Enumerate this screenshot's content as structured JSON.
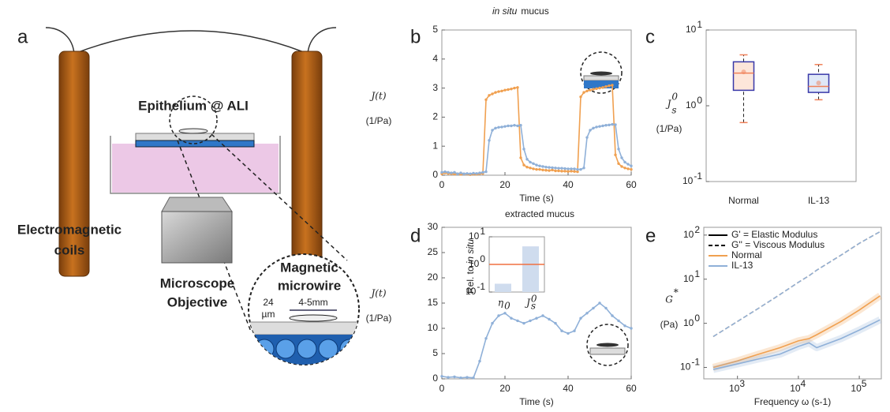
{
  "panel_labels": [
    "a",
    "b",
    "c",
    "d",
    "e"
  ],
  "diagram": {
    "epithelium": "Epithelium @ ALI",
    "coils": [
      "Electromagnetic",
      "coils"
    ],
    "objective": [
      "Microscope",
      "Objective"
    ],
    "microwire": [
      "Magnetic",
      "microwire"
    ],
    "thickness": [
      "24",
      "µm"
    ],
    "length": "4-5mm"
  },
  "section_titles": [
    {
      "italic": "in situ",
      "text": "mucus"
    },
    {
      "text": "extracted mucus"
    }
  ],
  "chart_data": [
    {
      "type": "line",
      "ylabel": {
        "main": "J(t)",
        "unit": "(1/Pa)"
      },
      "xlabel": "Time (s)",
      "x": [
        0,
        1,
        2,
        3,
        4,
        5,
        6,
        7,
        8,
        9,
        10,
        11,
        12,
        13,
        14,
        15,
        16,
        17,
        18,
        19,
        20,
        21,
        22,
        23,
        24,
        25,
        26,
        27,
        28,
        29,
        30,
        31,
        32,
        33,
        34,
        35,
        36,
        37,
        38,
        39,
        40,
        41,
        42,
        43,
        44,
        45,
        46,
        47,
        48,
        49,
        50,
        51,
        52,
        53,
        54,
        55,
        56,
        57,
        58,
        59,
        60
      ],
      "series": [
        {
          "color": "#f0a050",
          "values": [
            0.05,
            0.08,
            0.06,
            0.05,
            0.04,
            0.05,
            0.03,
            0.05,
            0.04,
            0.02,
            0.04,
            0.03,
            0.05,
            0.06,
            2.6,
            2.75,
            2.8,
            2.85,
            2.88,
            2.9,
            2.93,
            2.95,
            2.97,
            3.0,
            3.02,
            0.6,
            0.35,
            0.28,
            0.25,
            0.22,
            0.2,
            0.2,
            0.18,
            0.17,
            0.16,
            0.18,
            0.15,
            0.15,
            0.14,
            0.14,
            0.13,
            0.14,
            0.13,
            0.12,
            2.7,
            2.85,
            2.9,
            2.93,
            2.96,
            2.98,
            3.0,
            3.02,
            3.05,
            3.08,
            3.1,
            0.7,
            0.4,
            0.3,
            0.25,
            0.22,
            0.2
          ]
        },
        {
          "color": "#8fb0d8",
          "values": [
            0.1,
            0.12,
            0.1,
            0.08,
            0.1,
            0.05,
            0.08,
            0.05,
            0.06,
            0.05,
            0.07,
            0.06,
            0.08,
            0.1,
            0.12,
            1.2,
            1.55,
            1.62,
            1.65,
            1.66,
            1.68,
            1.7,
            1.7,
            1.72,
            1.7,
            1.72,
            0.9,
            0.55,
            0.45,
            0.4,
            0.35,
            0.32,
            0.3,
            0.28,
            0.27,
            0.26,
            0.25,
            0.24,
            0.24,
            0.23,
            0.22,
            0.22,
            0.22,
            0.2,
            0.2,
            0.25,
            1.3,
            1.55,
            1.62,
            1.66,
            1.68,
            1.7,
            1.72,
            1.73,
            1.75,
            1.74,
            0.9,
            0.6,
            0.45,
            0.38,
            0.32
          ]
        }
      ],
      "xlim": [
        0,
        60
      ],
      "xticks": [
        0,
        20,
        40,
        60
      ],
      "ylim": [
        0,
        5
      ],
      "yticks": [
        0,
        1,
        2,
        3,
        4,
        5
      ],
      "markers": true
    },
    {
      "type": "box",
      "ylabel": {
        "main": "J",
        "sub": "s",
        "sup": "0",
        "unit": "(1/Pa)"
      },
      "categories": [
        "Normal",
        "IL-13"
      ],
      "boxes": [
        {
          "min": 0.6,
          "q1": 1.6,
          "median": 2.7,
          "q3": 3.8,
          "max": 4.7,
          "mean": 2.8
        },
        {
          "min": 1.2,
          "q1": 1.5,
          "median": 1.8,
          "q3": 2.6,
          "max": 3.5,
          "mean": 2.0
        }
      ],
      "fills": [
        "#fde6da",
        "#dfe8f7"
      ],
      "box_color": "#3838a8",
      "median_color": "#f08058",
      "ylog": true,
      "ylim": [
        0.1,
        10
      ],
      "yticks": [
        {
          "value": 0.1,
          "label": "10",
          "exp": "-1"
        },
        {
          "value": 1,
          "label": "10",
          "exp": "0"
        },
        {
          "value": 10,
          "label": "10",
          "exp": "1"
        }
      ]
    },
    {
      "type": "line",
      "ylabel": {
        "main": "J(t)",
        "unit": "(1/Pa)"
      },
      "xlabel": "Time (s)",
      "x": [
        0,
        2,
        4,
        6,
        8,
        10,
        12,
        14,
        16,
        18,
        20,
        22,
        24,
        26,
        28,
        30,
        32,
        34,
        36,
        38,
        40,
        42,
        44,
        46,
        48,
        50,
        52,
        54,
        56,
        58,
        60
      ],
      "series": [
        {
          "color": "#8fb0d8",
          "values": [
            0.5,
            0.3,
            0.4,
            0.2,
            0.3,
            0.2,
            3.5,
            8,
            11,
            12.5,
            13,
            12,
            11.5,
            11,
            11.5,
            12,
            12.5,
            11.8,
            11,
            9.5,
            9,
            9.5,
            12,
            13,
            14,
            15,
            14,
            12.5,
            11.5,
            10.5,
            10
          ]
        }
      ],
      "xlim": [
        0,
        60
      ],
      "xticks": [
        0,
        20,
        40,
        60
      ],
      "ylim": [
        0,
        30
      ],
      "yticks": [
        0,
        5,
        10,
        15,
        20,
        25,
        30
      ],
      "markers": true
    },
    {
      "type": "bar",
      "ylabel": {
        "text": "Rel. to",
        "italic": "in situ"
      },
      "categories": [
        {
          "main": "η",
          "sub": "0"
        },
        {
          "main": "J",
          "sub": "s",
          "sup": "0"
        }
      ],
      "values": [
        0.2,
        4.5
      ],
      "color": "#cfdcee",
      "reference": 1,
      "reference_color": "#f07040",
      "ylog": true,
      "ylim": [
        0.1,
        10
      ],
      "yticks": [
        {
          "value": 0.1,
          "label": "10",
          "exp": "-1"
        },
        {
          "value": 1,
          "label": "10",
          "exp": "0"
        },
        {
          "value": 10,
          "label": "10",
          "exp": "1"
        }
      ]
    },
    {
      "type": "line",
      "ylabel": {
        "main": "G",
        "sup": "*",
        "unit": "(Pa)"
      },
      "xlabel": "Frequency ω (s-1)",
      "x": [
        400,
        1000,
        2000,
        5000,
        10000,
        15000,
        20000,
        50000,
        100000,
        220000
      ],
      "series": [
        {
          "color": "#f0a050",
          "dash": false,
          "values": [
            0.1,
            0.14,
            0.19,
            0.28,
            0.4,
            0.45,
            0.55,
            1.1,
            2.0,
            4.2
          ]
        },
        {
          "color": "#8fb0d8",
          "dash": false,
          "values": [
            0.09,
            0.12,
            0.15,
            0.2,
            0.3,
            0.36,
            0.28,
            0.45,
            0.7,
            1.2
          ]
        },
        {
          "color": "#f0a050",
          "dash": true,
          "values": [
            0.5,
            1.1,
            2.0,
            4.5,
            8.5,
            12,
            16,
            35,
            65,
            120
          ]
        },
        {
          "color": "#8fb0d8",
          "dash": true,
          "values": [
            0.5,
            1.1,
            2.0,
            4.5,
            8.5,
            12,
            16,
            35,
            65,
            120
          ]
        }
      ],
      "legend": [
        {
          "label": "G' = Elastic Modulus",
          "color": "#000000",
          "dash": false
        },
        {
          "label": "G'' = Viscous Modulus",
          "color": "#000000",
          "dash": true
        },
        {
          "label": "Normal",
          "color": "#f0a050",
          "dash": false
        },
        {
          "label": "IL-13",
          "color": "#8fb0d8",
          "dash": false
        }
      ],
      "halo": true,
      "xlog": true,
      "ylog": true,
      "xlim": [
        280,
        230000
      ],
      "ylim": [
        0.055,
        150
      ],
      "xticks": [
        {
          "value": 1000,
          "label": "10",
          "exp": "3"
        },
        {
          "value": 10000,
          "label": "10",
          "exp": "4"
        },
        {
          "value": 100000,
          "label": "10",
          "exp": "5"
        }
      ],
      "yticks": [
        {
          "value": 0.1,
          "label": "10",
          "exp": "-1"
        },
        {
          "value": 1,
          "label": "10",
          "exp": "0"
        },
        {
          "value": 10,
          "label": "10",
          "exp": "1"
        },
        {
          "value": 100,
          "label": "10",
          "exp": "2"
        }
      ]
    }
  ]
}
